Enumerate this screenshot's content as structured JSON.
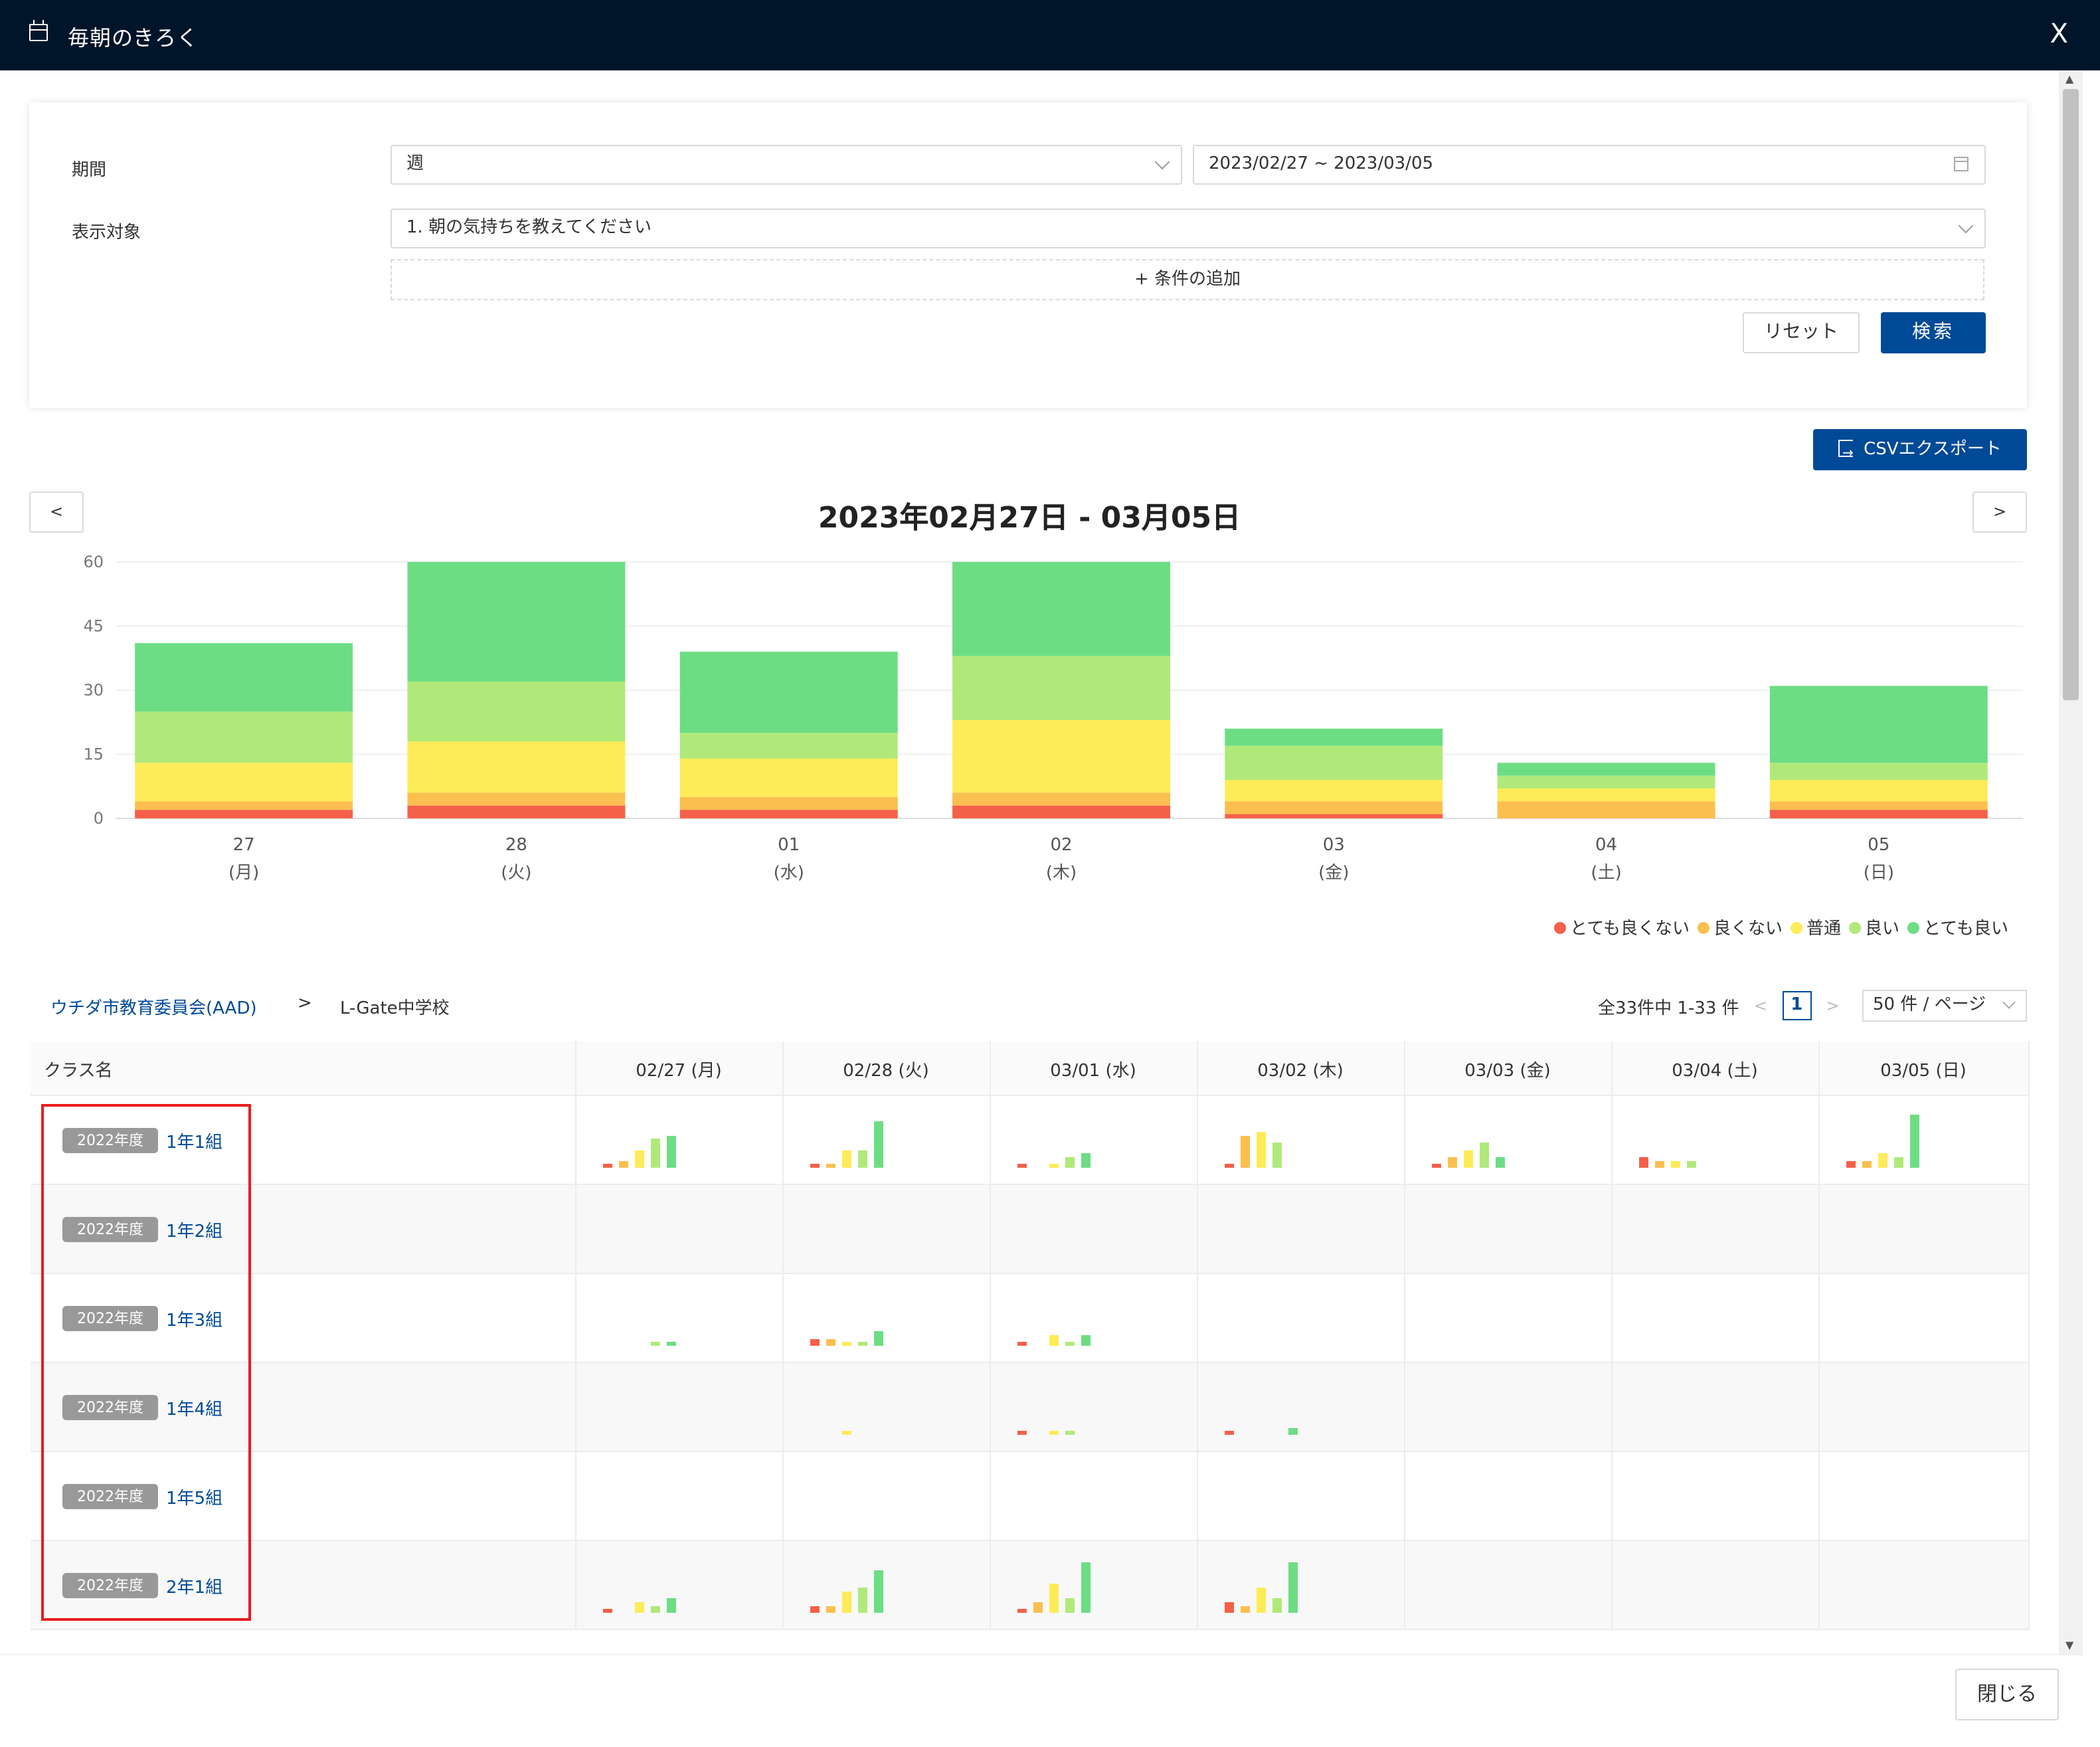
{
  "window": {
    "title": "毎朝のきろく",
    "close_label": "X"
  },
  "filter": {
    "period_label": "期間",
    "period_value": "週",
    "date_range": "2023/02/27 ~ 2023/03/05",
    "target_label": "表示対象",
    "target_value": "1. 朝の気持ちを教えてください",
    "add_condition": "+ 条件の追加",
    "reset_label": "リセット",
    "search_label": "検索"
  },
  "csv_export_label": "CSVエクスポート",
  "chart": {
    "title": "2023年02月27日 - 03月05日",
    "prev_label": "<",
    "next_label": ">"
  },
  "chart_data": {
    "type": "bar",
    "stacked": true,
    "categories": [
      "27",
      "28",
      "01",
      "02",
      "03",
      "04",
      "05"
    ],
    "weekdays": [
      "(月)",
      "(火)",
      "(水)",
      "(木)",
      "(金)",
      "(土)",
      "(日)"
    ],
    "ylim": [
      0,
      60
    ],
    "yticks": [
      0,
      15,
      30,
      45,
      60
    ],
    "grid": true,
    "legend_position": "bottom-right",
    "series": [
      {
        "name": "とても良くない",
        "color": "#f5604a",
        "values": [
          2,
          3,
          2,
          3,
          1,
          0,
          2
        ]
      },
      {
        "name": "良くない",
        "color": "#fbbf4f",
        "values": [
          2,
          3,
          3,
          3,
          3,
          4,
          2
        ]
      },
      {
        "name": "普通",
        "color": "#fdeb57",
        "values": [
          9,
          12,
          9,
          17,
          5,
          3,
          5
        ]
      },
      {
        "name": "良い",
        "color": "#b0e97a",
        "values": [
          12,
          14,
          6,
          15,
          8,
          3,
          4
        ]
      },
      {
        "name": "とても良い",
        "color": "#6ddd84",
        "values": [
          16,
          28,
          19,
          22,
          4,
          3,
          18
        ]
      }
    ]
  },
  "breadcrumb": {
    "root": "ウチダ市教育委員会(AAD)",
    "sep": ">",
    "current": "L-Gate中学校"
  },
  "pagination": {
    "total_text": "全33件中 1-33 件",
    "prev": "<",
    "page": "1",
    "next": ">",
    "page_size": "50 件 / ページ"
  },
  "table": {
    "class_header": "クラス名",
    "day_headers": [
      "02/27 (月)",
      "02/28 (火)",
      "03/01 (水)",
      "03/02 (木)",
      "03/03 (金)",
      "03/04 (土)",
      "03/05 (日)"
    ],
    "rows": [
      {
        "year": "2022年度",
        "name": "1年1組",
        "mini": [
          [
            1,
            2,
            5,
            8,
            9
          ],
          [
            1,
            1,
            5,
            5,
            13
          ],
          [
            1,
            0,
            1,
            3,
            4
          ],
          [
            1,
            9,
            10,
            7,
            0
          ],
          [
            1,
            3,
            5,
            7,
            3
          ],
          [
            3,
            2,
            2,
            2,
            0
          ],
          [
            2,
            2,
            4,
            3,
            15
          ]
        ]
      },
      {
        "year": "2022年度",
        "name": "1年2組",
        "mini": [
          [],
          [],
          [],
          [],
          [],
          [],
          []
        ]
      },
      {
        "year": "2022年度",
        "name": "1年3組",
        "mini": [
          [
            0,
            0,
            0,
            1,
            1
          ],
          [
            2,
            2,
            1,
            1,
            4
          ],
          [
            1,
            0,
            3,
            1,
            3
          ],
          [],
          [],
          [],
          []
        ]
      },
      {
        "year": "2022年度",
        "name": "1年4組",
        "mini": [
          [],
          [
            0,
            0,
            1,
            0,
            0
          ],
          [
            1,
            0,
            1,
            1,
            0
          ],
          [
            1,
            0,
            0,
            0,
            2
          ],
          [],
          [],
          []
        ]
      },
      {
        "year": "2022年度",
        "name": "1年5組",
        "mini": [
          [],
          [],
          [],
          [],
          [],
          [],
          []
        ]
      },
      {
        "year": "2022年度",
        "name": "2年1組",
        "mini": [
          [
            1,
            0,
            3,
            2,
            4
          ],
          [
            2,
            2,
            6,
            7,
            12
          ],
          [
            1,
            3,
            8,
            4,
            14
          ],
          [
            3,
            2,
            7,
            4,
            14
          ],
          [],
          [],
          []
        ]
      }
    ]
  },
  "footer": {
    "close_label": "閉じる"
  }
}
